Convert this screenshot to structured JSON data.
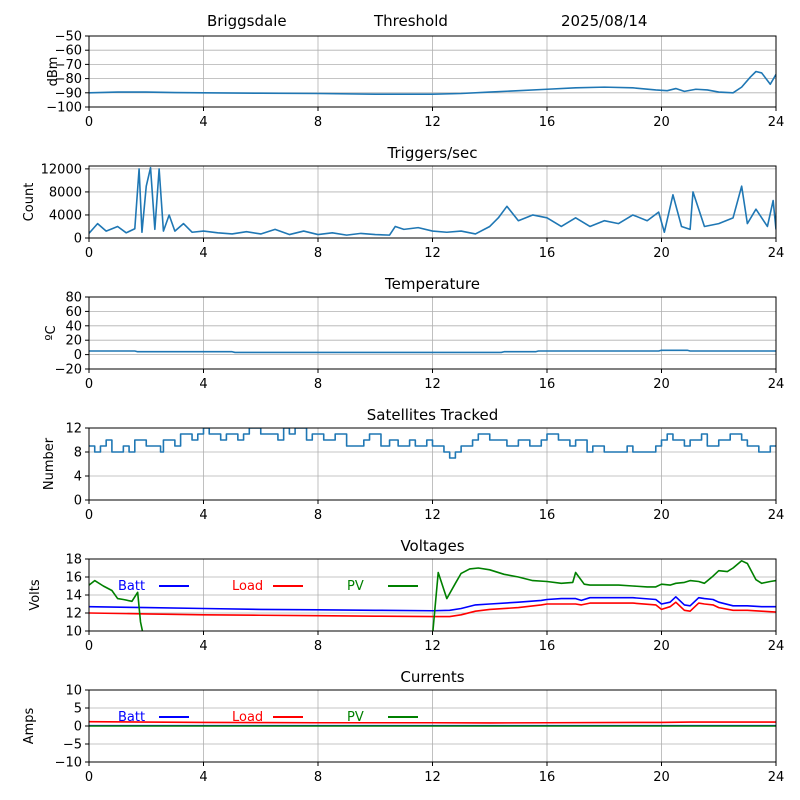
{
  "header": {
    "station": "Briggsdale",
    "mode": "Threshold",
    "date": "2025/08/14"
  },
  "chart_data": [
    {
      "type": "line",
      "title": "",
      "xlabel": "",
      "ylabel": "dBm",
      "xlim": [
        0,
        24
      ],
      "ylim": [
        -100,
        -50
      ],
      "xticks": [
        0,
        4,
        8,
        12,
        16,
        20,
        24
      ],
      "yticks": [
        -100,
        -90,
        -80,
        -70,
        -60,
        -50
      ],
      "grid": true,
      "series": [
        {
          "color": "#1f77b4",
          "x": [
            0,
            1,
            2,
            3,
            4,
            6,
            8,
            10,
            12,
            13,
            14,
            15,
            16,
            17,
            18,
            19,
            19.8,
            20.2,
            20.5,
            20.8,
            21.2,
            21.6,
            22,
            22.5,
            22.8,
            23.1,
            23.3,
            23.5,
            23.8,
            24
          ],
          "y": [
            -90,
            -89.5,
            -89.5,
            -89.8,
            -90,
            -90.3,
            -90.5,
            -91,
            -91,
            -90.5,
            -89.5,
            -88.5,
            -87.5,
            -86.5,
            -86,
            -86.5,
            -88,
            -88.5,
            -87,
            -89,
            -87.5,
            -88,
            -89.5,
            -90,
            -86,
            -79,
            -75,
            -76,
            -84,
            -77
          ]
        }
      ]
    },
    {
      "type": "line",
      "title": "Triggers/sec",
      "xlabel": "",
      "ylabel": "Count",
      "xlim": [
        0,
        24
      ],
      "ylim": [
        0,
        12500
      ],
      "xticks": [
        0,
        4,
        8,
        12,
        16,
        20,
        24
      ],
      "yticks": [
        0,
        4000,
        8000,
        12000
      ],
      "grid": true,
      "series": [
        {
          "color": "#1f77b4",
          "x": [
            0,
            0.3,
            0.6,
            1.0,
            1.3,
            1.6,
            1.75,
            1.85,
            2.0,
            2.15,
            2.3,
            2.45,
            2.6,
            2.8,
            3.0,
            3.3,
            3.6,
            4.0,
            4.5,
            5.0,
            5.5,
            6.0,
            6.5,
            7.0,
            7.5,
            8.0,
            8.5,
            9.0,
            9.5,
            10.0,
            10.5,
            10.7,
            11.0,
            11.5,
            12.0,
            12.5,
            13.0,
            13.5,
            14.0,
            14.3,
            14.6,
            15.0,
            15.5,
            16.0,
            16.5,
            17.0,
            17.5,
            18.0,
            18.5,
            19.0,
            19.5,
            19.9,
            20.1,
            20.4,
            20.7,
            21.0,
            21.1,
            21.5,
            22.0,
            22.5,
            22.8,
            23.0,
            23.3,
            23.7,
            23.9,
            24
          ],
          "y": [
            800,
            2500,
            1200,
            2000,
            900,
            1600,
            12000,
            1000,
            9000,
            12200,
            1500,
            12000,
            1200,
            4000,
            1200,
            2500,
            1000,
            1200,
            900,
            700,
            1100,
            700,
            1500,
            600,
            1200,
            600,
            900,
            500,
            800,
            600,
            500,
            2000,
            1500,
            1800,
            1200,
            1000,
            1200,
            700,
            2000,
            3500,
            5500,
            3000,
            4000,
            3500,
            2000,
            3500,
            2000,
            3000,
            2500,
            4000,
            3000,
            4500,
            1000,
            7500,
            2000,
            1500,
            8000,
            2000,
            2500,
            3500,
            9000,
            2500,
            5000,
            2000,
            6500,
            1500
          ]
        }
      ]
    },
    {
      "type": "line",
      "title": "Temperature",
      "xlabel": "",
      "ylabel": "ºC",
      "xlim": [
        0,
        24
      ],
      "ylim": [
        -20,
        80
      ],
      "xticks": [
        0,
        4,
        8,
        12,
        16,
        20,
        24
      ],
      "yticks": [
        -20,
        0,
        20,
        40,
        60,
        80
      ],
      "grid": true,
      "series": [
        {
          "color": "#1f77b4",
          "x": [
            0,
            1.6,
            1.7,
            5.0,
            5.1,
            14.4,
            14.5,
            15.6,
            15.7,
            19.9,
            20.0,
            20.9,
            21.0,
            24
          ],
          "y": [
            5,
            5,
            4,
            4,
            3,
            3,
            4,
            4,
            5,
            5,
            6,
            6,
            5,
            5
          ]
        }
      ]
    },
    {
      "type": "line",
      "title": "Satellites Tracked",
      "xlabel": "",
      "ylabel": "Number",
      "xlim": [
        0,
        24
      ],
      "ylim": [
        0,
        12
      ],
      "xticks": [
        0,
        4,
        8,
        12,
        16,
        20,
        24
      ],
      "yticks": [
        0,
        4,
        8,
        12
      ],
      "grid": true,
      "series": [
        {
          "color": "#1f77b4",
          "step": true,
          "x": [
            0,
            0.2,
            0.4,
            0.6,
            0.8,
            1.2,
            1.4,
            1.6,
            2.0,
            2.5,
            2.6,
            3.0,
            3.2,
            3.6,
            3.8,
            4.0,
            4.2,
            4.6,
            4.8,
            5.2,
            5.4,
            5.6,
            6.0,
            6.6,
            6.8,
            7.0,
            7.2,
            7.6,
            7.8,
            8.2,
            8.6,
            9.0,
            9.6,
            9.8,
            10.2,
            10.5,
            10.8,
            11.2,
            11.4,
            11.8,
            12.0,
            12.4,
            12.6,
            12.8,
            13.0,
            13.4,
            13.6,
            14.0,
            14.6,
            15.0,
            15.4,
            15.8,
            16.0,
            16.4,
            16.8,
            17.0,
            17.4,
            17.6,
            18.0,
            18.8,
            19.0,
            19.8,
            20.0,
            20.2,
            20.4,
            20.8,
            21.0,
            21.4,
            21.6,
            22.0,
            22.4,
            22.8,
            23.0,
            23.4,
            23.8,
            24
          ],
          "y": [
            9,
            8,
            9,
            10,
            8,
            9,
            8,
            10,
            9,
            8,
            10,
            9,
            11,
            10,
            11,
            12,
            11,
            10,
            11,
            10,
            11,
            12,
            11,
            10,
            12,
            11,
            12,
            10,
            11,
            10,
            11,
            9,
            10,
            11,
            9,
            10,
            9,
            10,
            9,
            10,
            9,
            8,
            7,
            8,
            9,
            10,
            11,
            10,
            9,
            10,
            9,
            10,
            11,
            10,
            9,
            10,
            8,
            9,
            8,
            9,
            8,
            9,
            10,
            11,
            10,
            9,
            10,
            11,
            9,
            10,
            11,
            10,
            9,
            8,
            9,
            9
          ]
        }
      ]
    },
    {
      "type": "line",
      "title": "Voltages",
      "xlabel": "",
      "ylabel": "Volts",
      "xlim": [
        0,
        24
      ],
      "ylim": [
        10,
        18
      ],
      "xticks": [
        0,
        4,
        8,
        12,
        16,
        20,
        24
      ],
      "yticks": [
        10,
        12,
        14,
        16,
        18
      ],
      "grid": true,
      "legend": "top-left",
      "series": [
        {
          "name": "Batt",
          "color": "#0000ff",
          "x": [
            0,
            2,
            4,
            6,
            8,
            10,
            12,
            12.6,
            13.0,
            13.5,
            14.0,
            15.0,
            15.8,
            16.0,
            16.5,
            17.0,
            17.2,
            17.5,
            18.0,
            19.0,
            19.8,
            20.0,
            20.3,
            20.5,
            20.8,
            21.0,
            21.3,
            21.5,
            21.8,
            22.0,
            22.5,
            23.0,
            23.5,
            24
          ],
          "y": [
            12.7,
            12.6,
            12.5,
            12.4,
            12.35,
            12.3,
            12.25,
            12.3,
            12.5,
            12.9,
            13.0,
            13.2,
            13.4,
            13.5,
            13.6,
            13.6,
            13.4,
            13.7,
            13.7,
            13.7,
            13.5,
            13.0,
            13.2,
            13.8,
            12.9,
            12.8,
            13.7,
            13.6,
            13.5,
            13.2,
            12.8,
            12.8,
            12.7,
            12.7
          ],
          "label_color": "#0000ff"
        },
        {
          "name": "Load",
          "color": "#ff0000",
          "x": [
            0,
            2,
            4,
            6,
            8,
            10,
            12,
            12.6,
            13.0,
            13.5,
            14.0,
            15.0,
            15.8,
            16.0,
            16.5,
            17.0,
            17.2,
            17.5,
            18.0,
            19.0,
            19.8,
            20.0,
            20.3,
            20.5,
            20.8,
            21.0,
            21.3,
            21.5,
            21.8,
            22.0,
            22.5,
            23.0,
            23.5,
            24
          ],
          "y": [
            12.0,
            11.9,
            11.8,
            11.75,
            11.7,
            11.65,
            11.6,
            11.6,
            11.8,
            12.2,
            12.4,
            12.6,
            12.9,
            13.0,
            13.0,
            13.0,
            12.9,
            13.1,
            13.1,
            13.1,
            12.9,
            12.4,
            12.7,
            13.2,
            12.3,
            12.2,
            13.1,
            13.0,
            12.9,
            12.6,
            12.3,
            12.3,
            12.2,
            12.1
          ],
          "label_color": "#ff0000"
        },
        {
          "name": "PV",
          "color": "#008000",
          "segments": [
            {
              "x": [
                0,
                0.2,
                0.5,
                0.8,
                1.0,
                1.2,
                1.5,
                1.7,
                1.8,
                1.9
              ],
              "y": [
                15.1,
                15.6,
                15.0,
                14.5,
                13.6,
                13.5,
                13.3,
                14.3,
                11.0,
                9.5
              ]
            },
            {
              "x": [
                12.0,
                12.2,
                12.5,
                12.8,
                13.0,
                13.3,
                13.6,
                14.0,
                14.5,
                15.0,
                15.5,
                16.0,
                16.5,
                16.9,
                17.0,
                17.3,
                17.5,
                18.0,
                18.5,
                19.0,
                19.5,
                19.8,
                20.0,
                20.3,
                20.5,
                20.8,
                21.0,
                21.3,
                21.5,
                21.8,
                22.0,
                22.3,
                22.5,
                22.8,
                23.0,
                23.3,
                23.5,
                23.8,
                24
              ],
              "y": [
                9.5,
                16.5,
                13.6,
                15.3,
                16.4,
                16.9,
                17.0,
                16.8,
                16.3,
                16.0,
                15.6,
                15.5,
                15.3,
                15.4,
                16.5,
                15.2,
                15.1,
                15.1,
                15.1,
                15.0,
                14.9,
                14.9,
                15.2,
                15.1,
                15.3,
                15.4,
                15.6,
                15.5,
                15.3,
                16.1,
                16.7,
                16.6,
                17.0,
                17.8,
                17.5,
                15.7,
                15.3,
                15.5,
                15.6
              ]
            }
          ],
          "label_color": "#008000"
        }
      ]
    },
    {
      "type": "line",
      "title": "Currents",
      "xlabel": "",
      "ylabel": "Amps",
      "xlim": [
        0,
        24
      ],
      "ylim": [
        -10,
        10
      ],
      "xticks": [
        0,
        4,
        8,
        12,
        16,
        20,
        24
      ],
      "yticks": [
        -10,
        -5,
        0,
        5,
        10
      ],
      "grid": true,
      "legend": "top-left",
      "series": [
        {
          "name": "Batt",
          "color": "#0000ff",
          "x": [
            0,
            24
          ],
          "y": [
            0.1,
            0.1
          ],
          "label_color": "#0000ff"
        },
        {
          "name": "Load",
          "color": "#ff0000",
          "x": [
            0,
            2,
            4,
            8,
            12,
            14,
            16,
            20,
            21,
            24
          ],
          "y": [
            1.2,
            1.1,
            1.0,
            0.9,
            0.9,
            0.85,
            0.9,
            1.0,
            1.1,
            1.1
          ],
          "label_color": "#ff0000"
        },
        {
          "name": "PV",
          "color": "#008000",
          "x": [
            0,
            24
          ],
          "y": [
            0.0,
            0.0
          ],
          "label_color": "#008000"
        }
      ]
    }
  ]
}
